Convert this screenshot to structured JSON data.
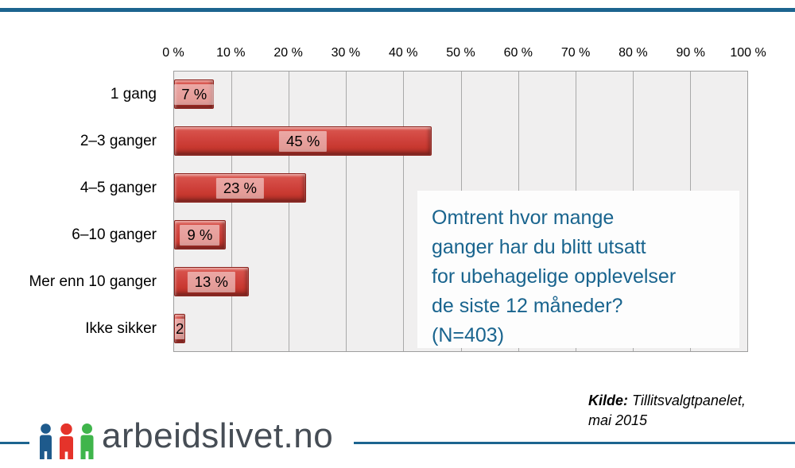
{
  "accent_color": "#1c648f",
  "chart_data": {
    "type": "bar",
    "orientation": "horizontal",
    "title": "",
    "categories": [
      "1 gang",
      "2–3 ganger",
      "4–5 ganger",
      "6–10 ganger",
      "Mer enn 10 ganger",
      "Ikke sikker"
    ],
    "values": [
      7,
      45,
      23,
      9,
      13,
      2
    ],
    "value_labels": [
      "7 %",
      "45 %",
      "23 %",
      "9 %",
      "13 %",
      "2"
    ],
    "x_axis": {
      "min": 0,
      "max": 100,
      "tick_step": 10,
      "ticks": [
        "0 %",
        "10 %",
        "20 %",
        "30 %",
        "40 %",
        "50 %",
        "60 %",
        "70 %",
        "80 %",
        "90 %",
        "100 %"
      ],
      "position": "top"
    },
    "grid": true,
    "legend": false,
    "bar_color": "#cf423c",
    "bar_border_color": "#8c231d",
    "plot_bg_color": "#f0efef",
    "gridline_color": "#a9a9a9"
  },
  "question": {
    "color": "#19648e",
    "lines": [
      "Omtrent hvor mange",
      "ganger har du blitt utsatt",
      "for ubehagelige opplevelser",
      "de siste 12 måneder?",
      "(N=403)"
    ]
  },
  "source": {
    "label": "Kilde:",
    "text": " Tillitsvalgtpanelet,",
    "line2": "mai 2015"
  },
  "footer": {
    "logo_text": "arbeidslivet.no",
    "people_colors": [
      "#1e5a8c",
      "#e5332a",
      "#3fb54b"
    ]
  }
}
